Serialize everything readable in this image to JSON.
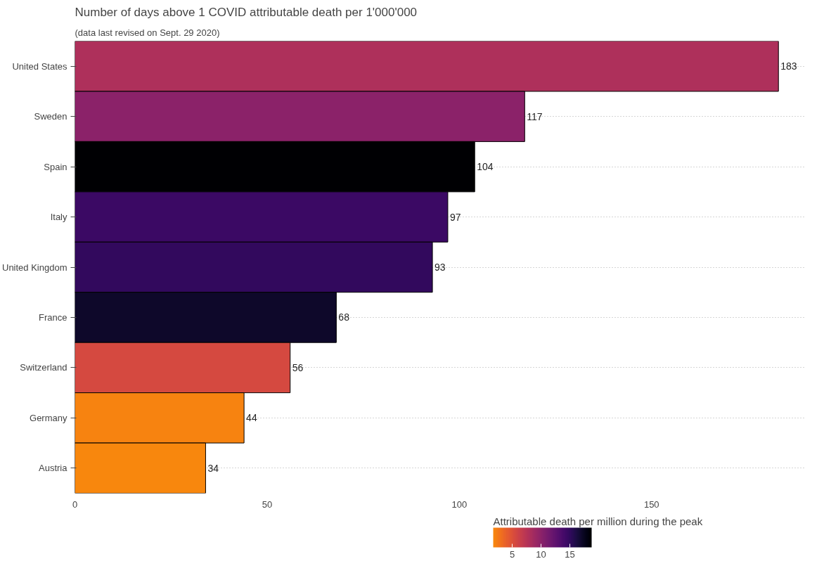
{
  "chart_data": {
    "type": "bar",
    "orientation": "horizontal",
    "title": "Number of days above 1 COVID attributable death per 1'000'000",
    "subtitle": "(data last revised on Sept. 29 2020)",
    "categories": [
      "United States",
      "Sweden",
      "Spain",
      "Italy",
      "United Kingdom",
      "France",
      "Switzerland",
      "Germany",
      "Austria"
    ],
    "values": [
      183,
      117,
      104,
      97,
      93,
      68,
      56,
      44,
      34
    ],
    "cvalues": [
      8,
      10,
      18.8,
      14.5,
      15,
      17,
      5.5,
      2,
      1.8
    ],
    "clabel": "Attributable death per million during the peak",
    "clim": [
      1.7,
      18.8
    ],
    "cticks": [
      5,
      10,
      15
    ],
    "xlim": [
      0,
      190
    ],
    "xticks": [
      0,
      50,
      100,
      150
    ],
    "grid": "y",
    "data_labels": true
  }
}
